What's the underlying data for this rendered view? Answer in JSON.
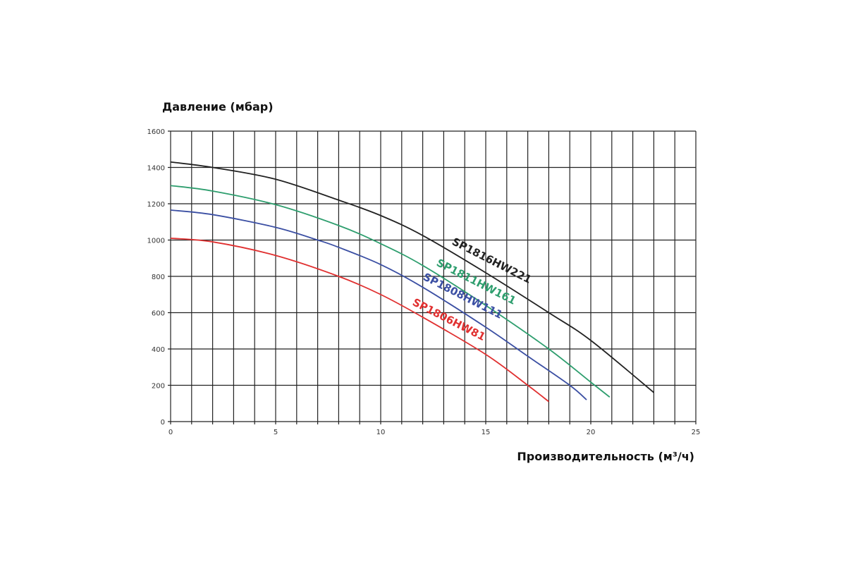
{
  "chart_data": {
    "type": "line",
    "ylabel": "Давление (мбар)",
    "xlabel": "Производительность (м³/ч)",
    "xlim": [
      0,
      25
    ],
    "ylim": [
      0,
      1600
    ],
    "x_ticks": [
      "0",
      "5",
      "10",
      "15",
      "20",
      "25"
    ],
    "y_ticks": [
      "0",
      "200",
      "400",
      "600",
      "800",
      "1000",
      "1200",
      "1400",
      "1600"
    ],
    "grid": true,
    "series": [
      {
        "name": "SP1816HW221",
        "color": "#222222",
        "x": [
          0,
          2,
          5,
          8,
          10,
          12,
          15,
          18,
          20,
          23
        ],
        "y": [
          1430,
          1400,
          1335,
          1220,
          1135,
          1025,
          820,
          600,
          447,
          160
        ]
      },
      {
        "name": "SP1811HW161",
        "color": "#2e9e6e",
        "x": [
          0,
          2,
          5,
          8,
          10,
          12,
          15,
          18,
          20,
          20.9
        ],
        "y": [
          1300,
          1270,
          1195,
          1080,
          980,
          860,
          640,
          400,
          217,
          135
        ]
      },
      {
        "name": "SP1808HW111",
        "color": "#3b4fa3",
        "x": [
          0,
          2,
          5,
          7,
          8,
          10,
          12,
          15,
          17,
          19,
          19.8
        ],
        "y": [
          1165,
          1140,
          1070,
          1000,
          960,
          865,
          740,
          520,
          360,
          200,
          120
        ]
      },
      {
        "name": "SP1806HW81",
        "color": "#e03030",
        "x": [
          0,
          2,
          5,
          8,
          10,
          12,
          15,
          17,
          18
        ],
        "y": [
          1010,
          990,
          915,
          800,
          700,
          575,
          370,
          200,
          110
        ]
      }
    ]
  }
}
